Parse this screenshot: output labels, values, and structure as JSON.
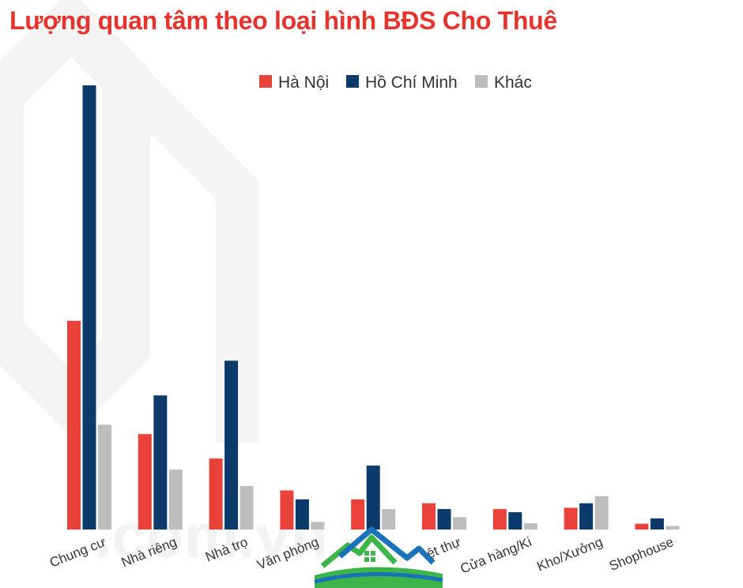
{
  "chart_data": {
    "type": "bar",
    "title": "Lượng quan tâm theo loại hình BĐS Cho Thuê",
    "xlabel": "",
    "ylabel": "",
    "grid": false,
    "legend_position": "top-center",
    "categories": [
      "Chung cư",
      "Nhà riêng",
      "Nhà trọ",
      "Văn phòng",
      "Biệt thự",
      "Biệt thự",
      "Cửa hàng/Ki-ốt",
      "Kho/Xưởng",
      "Shophouse"
    ],
    "category_labels": [
      "Chung cư",
      "Nhà riêng",
      "Nhà trọ",
      "Văn phòng",
      "",
      "ệt thự",
      "Cửa hàng/Ki",
      "Kho/Xưởng",
      "Shophouse"
    ],
    "ylim": [
      0,
      100
    ],
    "series": [
      {
        "name": "Hà Nội",
        "color": "#e9423a",
        "values": [
          47,
          21.5,
          16,
          8.8,
          6.8,
          5.9,
          4.6,
          4.9,
          1.3
        ]
      },
      {
        "name": "Hồ Chí Minh",
        "color": "#0b3a6b",
        "values": [
          100,
          30.2,
          38,
          6.8,
          14.4,
          4.6,
          3.9,
          5.9,
          2.5
        ]
      },
      {
        "name": "Khác",
        "color": "#bdbdbd",
        "values": [
          23.6,
          13.5,
          9.8,
          1.7,
          4.6,
          2.8,
          1.4,
          7.5,
          0.8
        ]
      }
    ]
  },
  "logo": {
    "name": "house-logo-icon",
    "colors": [
      "#3db54a",
      "#1a72b8",
      "#ffffff"
    ]
  },
  "watermark": {
    "text": ".com.vn",
    "color": "#f2f2f2"
  }
}
